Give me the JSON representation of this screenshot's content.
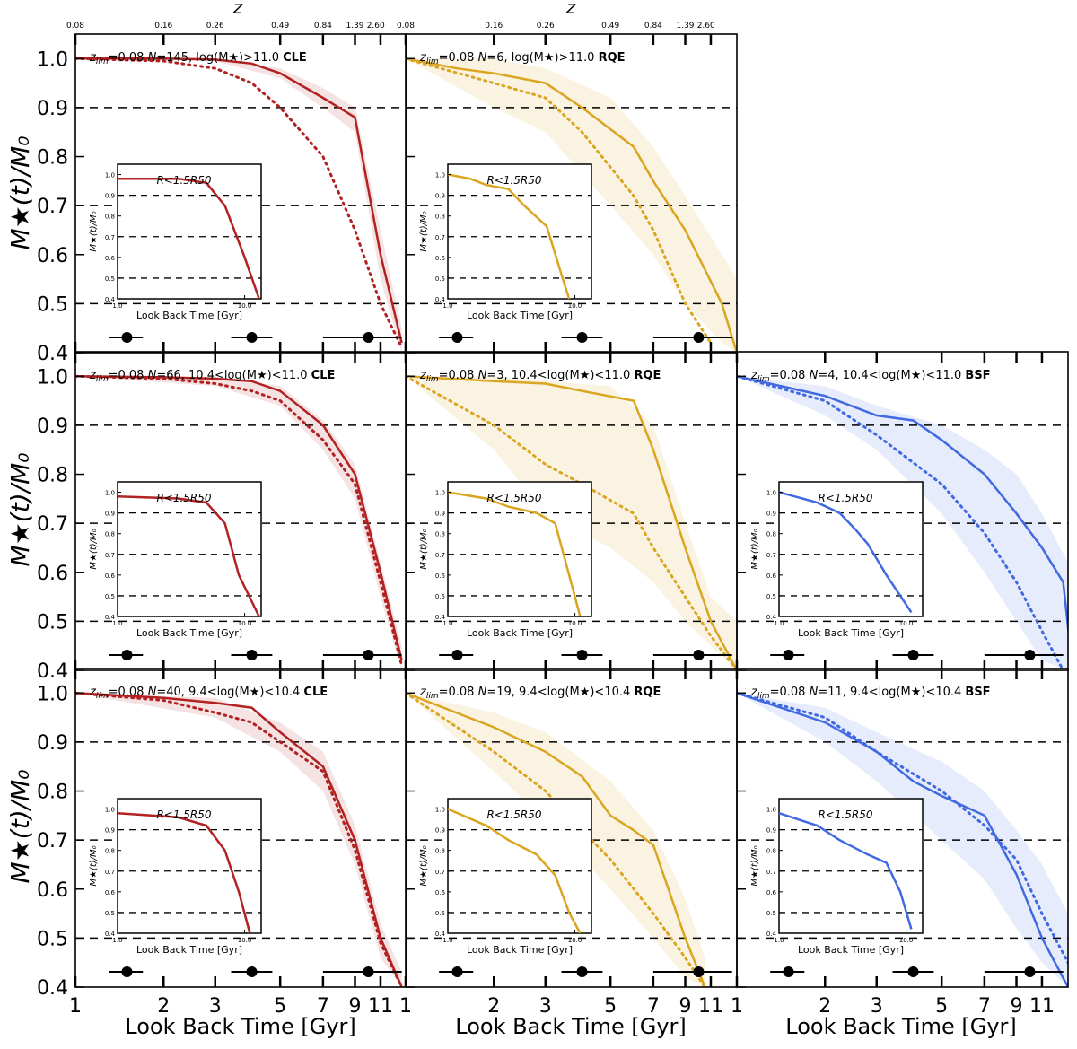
{
  "figure": {
    "ylabel": "M★(t)/M₀",
    "xlabel": "Look Back Time [Gyr]",
    "top_axis_label": "z",
    "inset_label": "R<1.5R50",
    "inset_xlabel": "Look Back Time [Gyr]",
    "inset_ylabel": "M★(t)/M₀"
  },
  "chart_data": {
    "type": "line",
    "xscale": "log",
    "xlim": [
      1,
      13.5
    ],
    "ylim": [
      0.4,
      1.05
    ],
    "x_ticks": [
      1,
      2,
      3,
      5,
      7,
      9,
      11
    ],
    "y_ticks": [
      0.4,
      0.5,
      0.6,
      0.7,
      0.8,
      0.9,
      1.0
    ],
    "z_ticks": [
      {
        "lbt": 1.0,
        "label": "0.08"
      },
      {
        "lbt": 2.0,
        "label": "0.16"
      },
      {
        "lbt": 3.0,
        "label": "0.26"
      },
      {
        "lbt": 5.0,
        "label": "0.49"
      },
      {
        "lbt": 7.0,
        "label": "0.84"
      },
      {
        "lbt": 9.0,
        "label": "1.39"
      },
      {
        "lbt": 10.6,
        "label": "2.60"
      }
    ],
    "reference_lines": [
      0.5,
      0.7,
      0.9
    ],
    "inset_ylim": [
      0.4,
      1.05
    ],
    "inset_y_ticks": [
      0.4,
      0.5,
      0.6,
      0.7,
      0.8,
      0.9,
      1.0
    ],
    "inset_x_ticks": [
      "1.0",
      "10.0"
    ],
    "colors": {
      "CLE": "#b22222",
      "RQE": "#daa520",
      "BSF": "#4169e1"
    },
    "error_bars": [
      {
        "x": 1.5,
        "xerr": [
          1.3,
          1.7
        ]
      },
      {
        "x": 4.0,
        "xerr": [
          3.4,
          4.7
        ]
      },
      {
        "x": 10.0,
        "xerr": [
          7.0,
          13.0
        ]
      }
    ],
    "panels": [
      {
        "row": 0,
        "col": 0,
        "class": "CLE",
        "z": "0.08",
        "N": "145",
        "mass": "log(M★)>11.0",
        "solid": [
          [
            1,
            1.0
          ],
          [
            2,
            1.0
          ],
          [
            3,
            0.998
          ],
          [
            4,
            0.99
          ],
          [
            5,
            0.97
          ],
          [
            7,
            0.92
          ],
          [
            9,
            0.88
          ],
          [
            11,
            0.6
          ],
          [
            13,
            0.42
          ]
        ],
        "dotted": [
          [
            1,
            1.0
          ],
          [
            2,
            0.995
          ],
          [
            3,
            0.98
          ],
          [
            4,
            0.95
          ],
          [
            5,
            0.9
          ],
          [
            7,
            0.8
          ],
          [
            9,
            0.65
          ],
          [
            11,
            0.5
          ],
          [
            13,
            0.41
          ]
        ],
        "band": [
          [
            1,
            1.0,
            1.0
          ],
          [
            3,
            0.995,
            0.999
          ],
          [
            5,
            0.96,
            0.98
          ],
          [
            7,
            0.9,
            0.94
          ],
          [
            9,
            0.85,
            0.9
          ],
          [
            11,
            0.55,
            0.65
          ],
          [
            13,
            0.4,
            0.45
          ]
        ],
        "inset": [
          [
            1,
            0.98
          ],
          [
            3,
            0.98
          ],
          [
            5,
            0.96
          ],
          [
            7,
            0.85
          ],
          [
            10,
            0.6
          ],
          [
            13,
            0.4
          ]
        ]
      },
      {
        "row": 0,
        "col": 1,
        "class": "RQE",
        "z": "0.08",
        "N": "6",
        "mass": "log(M★)>11.0",
        "solid": [
          [
            1,
            1.0
          ],
          [
            1.5,
            0.98
          ],
          [
            2,
            0.97
          ],
          [
            3,
            0.95
          ],
          [
            4,
            0.9
          ],
          [
            6,
            0.82
          ],
          [
            7,
            0.75
          ],
          [
            9,
            0.65
          ],
          [
            12,
            0.5
          ],
          [
            13.5,
            0.4
          ]
        ],
        "dotted": [
          [
            1,
            1.0
          ],
          [
            2,
            0.95
          ],
          [
            3,
            0.92
          ],
          [
            4,
            0.85
          ],
          [
            6,
            0.72
          ],
          [
            7,
            0.65
          ],
          [
            9,
            0.5
          ],
          [
            11,
            0.42
          ]
        ],
        "band": [
          [
            1,
            1.0,
            1.0
          ],
          [
            2,
            0.9,
            1.0
          ],
          [
            3,
            0.85,
            0.98
          ],
          [
            5,
            0.7,
            0.92
          ],
          [
            7,
            0.6,
            0.82
          ],
          [
            9,
            0.5,
            0.72
          ],
          [
            12,
            0.42,
            0.6
          ],
          [
            13.5,
            0.4,
            0.55
          ]
        ],
        "inset": [
          [
            1,
            1.0
          ],
          [
            1.5,
            0.98
          ],
          [
            2,
            0.95
          ],
          [
            3,
            0.93
          ],
          [
            4,
            0.85
          ],
          [
            6,
            0.75
          ],
          [
            8,
            0.5
          ],
          [
            9,
            0.4
          ]
        ]
      },
      {
        "row": 1,
        "col": 0,
        "class": "CLE",
        "z": "0.08",
        "N": "66",
        "mass": "10.4<log(M★)<11.0",
        "solid": [
          [
            1,
            1.0
          ],
          [
            2,
            0.998
          ],
          [
            3,
            0.995
          ],
          [
            4,
            0.99
          ],
          [
            5,
            0.97
          ],
          [
            7,
            0.9
          ],
          [
            9,
            0.8
          ],
          [
            11,
            0.6
          ],
          [
            13,
            0.42
          ]
        ],
        "dotted": [
          [
            1,
            1.0
          ],
          [
            2,
            0.995
          ],
          [
            3,
            0.985
          ],
          [
            4,
            0.97
          ],
          [
            5,
            0.95
          ],
          [
            7,
            0.87
          ],
          [
            9,
            0.78
          ],
          [
            11,
            0.58
          ],
          [
            13,
            0.41
          ]
        ],
        "band": [
          [
            1,
            1.0,
            1.0
          ],
          [
            3,
            0.98,
            0.999
          ],
          [
            5,
            0.94,
            0.98
          ],
          [
            7,
            0.85,
            0.91
          ],
          [
            9,
            0.75,
            0.82
          ],
          [
            11,
            0.55,
            0.62
          ],
          [
            13,
            0.4,
            0.45
          ]
        ],
        "inset": [
          [
            1,
            0.98
          ],
          [
            3,
            0.97
          ],
          [
            5,
            0.95
          ],
          [
            7,
            0.85
          ],
          [
            9,
            0.6
          ],
          [
            13,
            0.4
          ]
        ]
      },
      {
        "row": 1,
        "col": 1,
        "class": "RQE",
        "z": "0.08",
        "N": "3",
        "mass": "10.4<log(M★)<11.0",
        "solid": [
          [
            1,
            1.0
          ],
          [
            2,
            0.99
          ],
          [
            3,
            0.985
          ],
          [
            4,
            0.97
          ],
          [
            6,
            0.95
          ],
          [
            7,
            0.85
          ],
          [
            9,
            0.65
          ],
          [
            11,
            0.5
          ],
          [
            13.5,
            0.4
          ]
        ],
        "dotted": [
          [
            1,
            1.0
          ],
          [
            2,
            0.9
          ],
          [
            3,
            0.82
          ],
          [
            4,
            0.78
          ],
          [
            6,
            0.72
          ],
          [
            7,
            0.65
          ],
          [
            9,
            0.55
          ],
          [
            11,
            0.47
          ],
          [
            13.5,
            0.4
          ]
        ],
        "band": [
          [
            1,
            1.0,
            1.0
          ],
          [
            2,
            0.85,
            1.0
          ],
          [
            3,
            0.72,
            0.99
          ],
          [
            5,
            0.65,
            0.98
          ],
          [
            7,
            0.58,
            0.9
          ],
          [
            9,
            0.5,
            0.7
          ],
          [
            11,
            0.45,
            0.55
          ],
          [
            13.5,
            0.4,
            0.5
          ]
        ],
        "inset": [
          [
            1,
            1.0
          ],
          [
            2,
            0.97
          ],
          [
            3,
            0.93
          ],
          [
            5,
            0.9
          ],
          [
            7,
            0.85
          ],
          [
            9,
            0.6
          ],
          [
            11,
            0.4
          ]
        ]
      },
      {
        "row": 1,
        "col": 2,
        "class": "BSF",
        "z": "0.08",
        "N": "4",
        "mass": "10.4<log(M★)<11.0",
        "solid": [
          [
            1,
            1.0
          ],
          [
            2,
            0.96
          ],
          [
            3,
            0.92
          ],
          [
            4,
            0.91
          ],
          [
            5,
            0.87
          ],
          [
            7,
            0.8
          ],
          [
            9,
            0.72
          ],
          [
            11,
            0.65
          ],
          [
            13,
            0.58
          ],
          [
            14,
            0.4
          ]
        ],
        "dotted": [
          [
            1,
            1.0
          ],
          [
            2,
            0.95
          ],
          [
            3,
            0.88
          ],
          [
            5,
            0.78
          ],
          [
            7,
            0.68
          ],
          [
            9,
            0.58
          ],
          [
            11,
            0.48
          ],
          [
            13,
            0.4
          ]
        ],
        "band": [
          [
            1,
            1.0,
            1.0
          ],
          [
            2,
            0.92,
            0.98
          ],
          [
            3,
            0.85,
            0.94
          ],
          [
            5,
            0.72,
            0.9
          ],
          [
            7,
            0.6,
            0.85
          ],
          [
            9,
            0.5,
            0.8
          ],
          [
            11,
            0.42,
            0.72
          ],
          [
            13.5,
            0.4,
            0.62
          ]
        ],
        "inset": [
          [
            1,
            1.0
          ],
          [
            2,
            0.95
          ],
          [
            3,
            0.9
          ],
          [
            4,
            0.82
          ],
          [
            5,
            0.75
          ],
          [
            7,
            0.6
          ],
          [
            9,
            0.5
          ],
          [
            11,
            0.42
          ]
        ]
      },
      {
        "row": 2,
        "col": 0,
        "class": "CLE",
        "z": "0.08",
        "N": "40",
        "mass": "9.4<log(M★)<10.4",
        "solid": [
          [
            1,
            1.0
          ],
          [
            2,
            0.99
          ],
          [
            3,
            0.98
          ],
          [
            4,
            0.97
          ],
          [
            5,
            0.92
          ],
          [
            7,
            0.85
          ],
          [
            9,
            0.7
          ],
          [
            11,
            0.5
          ],
          [
            13,
            0.4
          ]
        ],
        "dotted": [
          [
            1,
            1.0
          ],
          [
            2,
            0.985
          ],
          [
            3,
            0.96
          ],
          [
            4,
            0.94
          ],
          [
            5,
            0.9
          ],
          [
            7,
            0.84
          ],
          [
            9,
            0.68
          ],
          [
            11,
            0.49
          ],
          [
            13,
            0.4
          ]
        ],
        "band": [
          [
            1,
            1.0,
            1.0
          ],
          [
            3,
            0.95,
            0.99
          ],
          [
            5,
            0.88,
            0.94
          ],
          [
            7,
            0.8,
            0.88
          ],
          [
            9,
            0.65,
            0.73
          ],
          [
            11,
            0.46,
            0.53
          ],
          [
            13,
            0.4,
            0.43
          ]
        ],
        "inset": [
          [
            1,
            0.98
          ],
          [
            3,
            0.96
          ],
          [
            5,
            0.92
          ],
          [
            7,
            0.8
          ],
          [
            9,
            0.6
          ],
          [
            11,
            0.4
          ]
        ]
      },
      {
        "row": 2,
        "col": 1,
        "class": "RQE",
        "z": "0.08",
        "N": "19",
        "mass": "9.4<log(M★)<10.4",
        "solid": [
          [
            1,
            1.0
          ],
          [
            2,
            0.93
          ],
          [
            3,
            0.88
          ],
          [
            4,
            0.83
          ],
          [
            5,
            0.75
          ],
          [
            6,
            0.72
          ],
          [
            7,
            0.69
          ],
          [
            9,
            0.5
          ],
          [
            10.5,
            0.4
          ]
        ],
        "dotted": [
          [
            1,
            1.0
          ],
          [
            2,
            0.88
          ],
          [
            3,
            0.8
          ],
          [
            4,
            0.72
          ],
          [
            5,
            0.66
          ],
          [
            7,
            0.55
          ],
          [
            9,
            0.46
          ],
          [
            10.5,
            0.4
          ]
        ],
        "band": [
          [
            1,
            1.0,
            1.0
          ],
          [
            2,
            0.84,
            0.96
          ],
          [
            3,
            0.74,
            0.92
          ],
          [
            5,
            0.6,
            0.82
          ],
          [
            7,
            0.5,
            0.72
          ],
          [
            9,
            0.42,
            0.58
          ],
          [
            10.5,
            0.4,
            0.46
          ]
        ],
        "inset": [
          [
            1,
            1.0
          ],
          [
            2,
            0.92
          ],
          [
            3,
            0.85
          ],
          [
            5,
            0.78
          ],
          [
            7,
            0.68
          ],
          [
            9,
            0.5
          ],
          [
            11,
            0.4
          ]
        ]
      },
      {
        "row": 2,
        "col": 2,
        "class": "BSF",
        "z": "0.08",
        "N": "11",
        "mass": "9.4<log(M★)<10.4",
        "solid": [
          [
            1,
            1.0
          ],
          [
            2,
            0.94
          ],
          [
            3,
            0.88
          ],
          [
            4,
            0.82
          ],
          [
            5,
            0.79
          ],
          [
            7,
            0.75
          ],
          [
            9,
            0.63
          ],
          [
            11,
            0.5
          ],
          [
            13.5,
            0.4
          ]
        ],
        "dotted": [
          [
            1,
            1.0
          ],
          [
            2,
            0.95
          ],
          [
            3,
            0.88
          ],
          [
            5,
            0.8
          ],
          [
            7,
            0.73
          ],
          [
            9,
            0.66
          ],
          [
            11,
            0.55
          ],
          [
            13.5,
            0.45
          ]
        ],
        "band": [
          [
            1,
            1.0,
            1.0
          ],
          [
            2,
            0.9,
            0.97
          ],
          [
            3,
            0.82,
            0.92
          ],
          [
            5,
            0.7,
            0.86
          ],
          [
            7,
            0.62,
            0.8
          ],
          [
            9,
            0.52,
            0.72
          ],
          [
            11,
            0.45,
            0.65
          ],
          [
            13.5,
            0.4,
            0.55
          ]
        ],
        "inset": [
          [
            1,
            0.98
          ],
          [
            2,
            0.92
          ],
          [
            3,
            0.85
          ],
          [
            5,
            0.78
          ],
          [
            7,
            0.74
          ],
          [
            9,
            0.6
          ],
          [
            11,
            0.42
          ]
        ]
      }
    ]
  }
}
